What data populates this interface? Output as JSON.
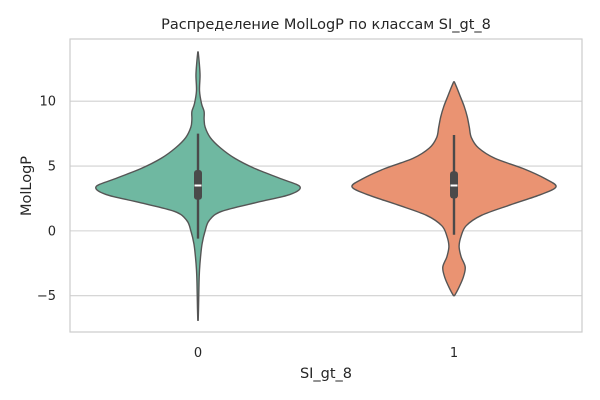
{
  "chart_data": {
    "type": "violin",
    "title": "Распределение MolLogP по классам SI_gt_8",
    "xlabel": "SI_gt_8",
    "ylabel": "MolLogP",
    "categories": [
      "0",
      "1"
    ],
    "yticks": [
      "−5",
      "0",
      "5",
      "10"
    ],
    "ytick_values": [
      -5,
      0,
      5,
      10
    ],
    "ylim": [
      -7.8,
      14.8
    ],
    "grid": "horizontal",
    "colors": {
      "0": "#6fb8a1",
      "1": "#ea9372",
      "outline": "#555555",
      "box": "#4a4a4a",
      "grid": "#d0d0d0",
      "frame": "#cccccc"
    },
    "series": [
      {
        "category": "0",
        "min": -6.9,
        "max": 13.8,
        "q1": 2.4,
        "median": 3.5,
        "q3": 4.7,
        "whisker_low": -0.6,
        "whisker_high": 7.5,
        "density_profile": [
          {
            "y": -6.9,
            "w": 0.002
          },
          {
            "y": -6.0,
            "w": 0.005
          },
          {
            "y": -4.0,
            "w": 0.01
          },
          {
            "y": -3.0,
            "w": 0.015
          },
          {
            "y": -2.0,
            "w": 0.025
          },
          {
            "y": -1.0,
            "w": 0.04
          },
          {
            "y": 0.0,
            "w": 0.07
          },
          {
            "y": 0.8,
            "w": 0.11
          },
          {
            "y": 1.5,
            "w": 0.23
          },
          {
            "y": 2.2,
            "w": 0.58
          },
          {
            "y": 2.8,
            "w": 0.9
          },
          {
            "y": 3.4,
            "w": 1.0
          },
          {
            "y": 4.0,
            "w": 0.82
          },
          {
            "y": 4.8,
            "w": 0.56
          },
          {
            "y": 5.6,
            "w": 0.36
          },
          {
            "y": 6.4,
            "w": 0.22
          },
          {
            "y": 7.2,
            "w": 0.12
          },
          {
            "y": 8.0,
            "w": 0.07
          },
          {
            "y": 8.6,
            "w": 0.06
          },
          {
            "y": 9.2,
            "w": 0.06
          },
          {
            "y": 9.8,
            "w": 0.035
          },
          {
            "y": 10.8,
            "w": 0.015
          },
          {
            "y": 12.0,
            "w": 0.02
          },
          {
            "y": 13.0,
            "w": 0.012
          },
          {
            "y": 13.8,
            "w": 0.002
          }
        ]
      },
      {
        "category": "1",
        "min": -5.0,
        "max": 11.5,
        "q1": 2.5,
        "median": 3.5,
        "q3": 4.6,
        "whisker_low": -0.3,
        "whisker_high": 7.4,
        "density_profile": [
          {
            "y": -5.0,
            "w": 0.005
          },
          {
            "y": -4.5,
            "w": 0.04
          },
          {
            "y": -3.6,
            "w": 0.09
          },
          {
            "y": -2.8,
            "w": 0.11
          },
          {
            "y": -2.0,
            "w": 0.07
          },
          {
            "y": -1.2,
            "w": 0.05
          },
          {
            "y": -0.4,
            "w": 0.07
          },
          {
            "y": 0.4,
            "w": 0.12
          },
          {
            "y": 1.2,
            "w": 0.27
          },
          {
            "y": 2.0,
            "w": 0.55
          },
          {
            "y": 2.8,
            "w": 0.85
          },
          {
            "y": 3.4,
            "w": 1.0
          },
          {
            "y": 4.0,
            "w": 0.9
          },
          {
            "y": 4.8,
            "w": 0.68
          },
          {
            "y": 5.6,
            "w": 0.4
          },
          {
            "y": 6.4,
            "w": 0.24
          },
          {
            "y": 7.2,
            "w": 0.17
          },
          {
            "y": 8.0,
            "w": 0.15
          },
          {
            "y": 8.8,
            "w": 0.13
          },
          {
            "y": 9.6,
            "w": 0.1
          },
          {
            "y": 10.4,
            "w": 0.06
          },
          {
            "y": 11.0,
            "w": 0.03
          },
          {
            "y": 11.5,
            "w": 0.003
          }
        ]
      }
    ]
  }
}
